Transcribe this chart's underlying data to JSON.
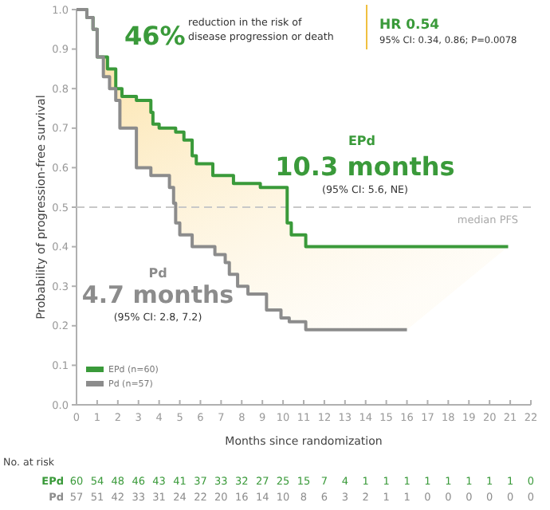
{
  "chart_data": {
    "type": "step",
    "xlabel": "Months since randomization",
    "ylabel": "Probability of progression-free survival",
    "xlim": [
      0,
      22
    ],
    "xticks": [
      0,
      1,
      2,
      3,
      4,
      5,
      6,
      7,
      8,
      9,
      10,
      11,
      12,
      13,
      14,
      15,
      16,
      17,
      18,
      19,
      20,
      21,
      22
    ],
    "ylim": [
      0,
      1
    ],
    "yticks": [
      {
        "value": 0,
        "label": "0.0"
      },
      {
        "value": 0.1,
        "label": "0.1"
      },
      {
        "value": 0.2,
        "label": "0.2"
      },
      {
        "value": 0.3,
        "label": "0.3"
      },
      {
        "value": 0.4,
        "label": "0.4"
      },
      {
        "value": 0.5,
        "label": "0.5"
      },
      {
        "value": 0.6,
        "label": "0.6"
      },
      {
        "value": 0.7,
        "label": "0.7"
      },
      {
        "value": 0.8,
        "label": "0.8"
      },
      {
        "value": 0.9,
        "label": "0.9"
      },
      {
        "value": 1,
        "label": "1.0"
      }
    ],
    "series": [
      {
        "name": "EPd (n=60)",
        "color": "#3a9a3a",
        "x": [
          0,
          0.5,
          0.8,
          1.0,
          1.5,
          1.9,
          2.2,
          2.9,
          3.6,
          3.7,
          4.0,
          4.8,
          5.2,
          5.6,
          5.8,
          6.6,
          7.6,
          8.9,
          10.2,
          10.4,
          11.1,
          20.9
        ],
        "values": [
          1.0,
          0.98,
          0.95,
          0.88,
          0.85,
          0.8,
          0.78,
          0.77,
          0.74,
          0.71,
          0.7,
          0.69,
          0.67,
          0.63,
          0.61,
          0.58,
          0.56,
          0.55,
          0.46,
          0.43,
          0.4,
          0.4
        ]
      },
      {
        "name": "Pd (n=57)",
        "color": "#8c8c8c",
        "x": [
          0,
          0.5,
          0.8,
          1.0,
          1.3,
          1.6,
          1.9,
          2.1,
          2.9,
          3.6,
          4.5,
          4.7,
          4.8,
          5.0,
          5.6,
          6.7,
          7.2,
          7.4,
          7.8,
          8.3,
          9.2,
          9.9,
          10.3,
          11.1,
          16.0
        ],
        "values": [
          1.0,
          0.98,
          0.95,
          0.88,
          0.83,
          0.8,
          0.77,
          0.7,
          0.6,
          0.58,
          0.55,
          0.51,
          0.46,
          0.43,
          0.4,
          0.38,
          0.36,
          0.33,
          0.3,
          0.28,
          0.24,
          0.22,
          0.21,
          0.19,
          0.19
        ]
      }
    ],
    "ref_lines": [
      {
        "axis": "y",
        "value": 0.5,
        "label": "median PFS",
        "color": "#c8c8c8",
        "line_style": "dashed"
      }
    ],
    "legend": "bottom left",
    "marker": "none",
    "line_style": "solid",
    "grid": false,
    "annotations": [
      "46%",
      "reduction in the risk of",
      "disease progression or death",
      "HR 0.54",
      "95% CI: 0.34, 0.86; P=0.0078",
      "EPd",
      "10.3 months",
      "(95% CI: 5.6, NE)",
      "Pd",
      "4.7 months",
      "(95% CI: 2.8, 7.2)",
      "No. at risk",
      "EPd 60 54 48 46 43 41 37 33 32 27 25 15 7 4 1 1 1 1 1 1 1 1 0",
      "Pd 57 51 42 33 31 24 22 20 16 14 10 8 6 3 2 1 1 0 0 0 0 0 0"
    ]
  }
}
